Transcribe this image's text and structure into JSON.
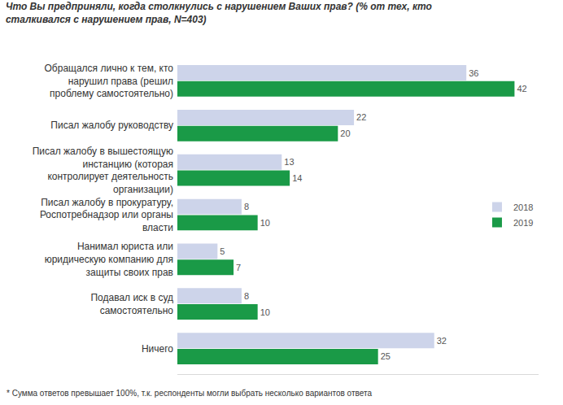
{
  "chart_data": {
    "type": "bar",
    "orientation": "horizontal",
    "title": "Что Вы предприняли, когда столкнулись с нарушением Ваших прав? (% от тех, кто сталкивался с нарушением прав, N=403)",
    "categories": [
      "Обращался лично к тем, кто нарушил права (решил проблему самостоятельно)",
      "Писал жалобу руководству",
      "Писал жалобу в вышестоящую инстанцию (которая контролирует деятельность организации)",
      "Писал жалобу в прокуратуру, Роспотребнадзор или органы власти",
      "Нанимал юриста или юридическую компанию для защиты своих прав",
      "Подавал иск в суд самостоятельно",
      "Ничего"
    ],
    "series": [
      {
        "name": "2018",
        "color": "#cdd4ea",
        "values": [
          36,
          22,
          13,
          8,
          5,
          8,
          32
        ]
      },
      {
        "name": "2019",
        "color": "#1a9a47",
        "values": [
          42,
          20,
          14,
          10,
          7,
          10,
          25
        ]
      }
    ],
    "xlim": [
      0,
      45
    ],
    "tick_labels": "y",
    "grid": false,
    "legend": "right",
    "data_labels": true,
    "annotations": [
      "* Сумма ответов превышает 100%, т.к. респонденты могли выбрать несколько вариантов ответа"
    ]
  }
}
